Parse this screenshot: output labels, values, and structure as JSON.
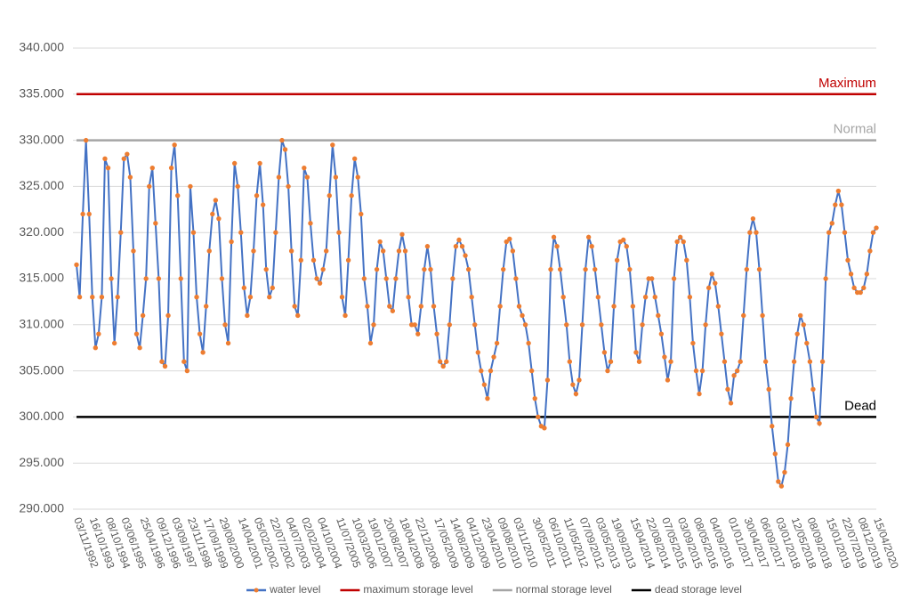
{
  "chart_data": {
    "type": "line",
    "categories": [
      "03/11/1992",
      null,
      null,
      null,
      null,
      "16/10/1993",
      null,
      null,
      null,
      null,
      "08/10/1994",
      null,
      null,
      null,
      null,
      "03/06/1995",
      null,
      null,
      null,
      null,
      null,
      "25/04/1996",
      null,
      null,
      null,
      null,
      "09/12/1996",
      null,
      null,
      null,
      null,
      "03/09/1997",
      null,
      null,
      null,
      null,
      "23/11/1998",
      null,
      null,
      null,
      null,
      "17/09/1999",
      null,
      null,
      null,
      null,
      "29/08/2000",
      null,
      null,
      null,
      null,
      null,
      "14/04/2001",
      null,
      null,
      null,
      null,
      "05/02/2002",
      null,
      null,
      null,
      null,
      "22/07/2002",
      null,
      null,
      null,
      null,
      "04/07/2003",
      null,
      null,
      null,
      null,
      "02/02/2004",
      null,
      null,
      null,
      null,
      "04/10/2004",
      null,
      null,
      null,
      null,
      null,
      "11/07/2005",
      null,
      null,
      null,
      null,
      "10/03/2006",
      null,
      null,
      null,
      null,
      "19/01/2007",
      null,
      null,
      null,
      null,
      "20/08/2007",
      null,
      null,
      null,
      null,
      "18/04/2008",
      null,
      null,
      null,
      null,
      "22/12/2008",
      null,
      null,
      null,
      null,
      null,
      "17/05/2009",
      null,
      null,
      null,
      null,
      "14/08/2009",
      null,
      null,
      null,
      null,
      "04/12/2009",
      null,
      null,
      null,
      null,
      "23/04/2010",
      null,
      null,
      null,
      null,
      "09/08/2010",
      null,
      null,
      null,
      null,
      "03/11/2010",
      null,
      null,
      null,
      null,
      null,
      "30/05/2011",
      null,
      null,
      null,
      null,
      "06/10/2011",
      null,
      null,
      null,
      null,
      "11/05/2012",
      null,
      null,
      null,
      null,
      "07/09/2012",
      null,
      null,
      null,
      null,
      "03/05/2013",
      null,
      null,
      null,
      null,
      "19/09/2013",
      null,
      null,
      null,
      null,
      null,
      "15/04/2014",
      null,
      null,
      null,
      null,
      "22/08/2014",
      null,
      null,
      null,
      null,
      "07/05/2015",
      null,
      null,
      null,
      null,
      "03/09/2015",
      null,
      null,
      null,
      null,
      "08/05/2016",
      null,
      null,
      null,
      null,
      "04/09/2016",
      null,
      null,
      null,
      null,
      null,
      "01/01/2017",
      null,
      null,
      null,
      null,
      "30/04/2017",
      null,
      null,
      null,
      null,
      "06/09/2017",
      null,
      null,
      null,
      null,
      "03/01/2018",
      null,
      null,
      null,
      null,
      "12/05/2018",
      null,
      null,
      null,
      null,
      "08/09/2018",
      null,
      null,
      null,
      null,
      null,
      "15/01/2019",
      null,
      null,
      null,
      null,
      "22/07/2019",
      null,
      null,
      null,
      null,
      "08/12/2019",
      null,
      null,
      null,
      null,
      "15/04/2020"
    ],
    "series": [
      {
        "name": "water level",
        "color": "#4472c4",
        "marker_color": "#ed7d31",
        "values": [
          316.5,
          313,
          322,
          330,
          322,
          313,
          307.5,
          309,
          313,
          328,
          327,
          315,
          308,
          313,
          320,
          328,
          328.5,
          326,
          318,
          309,
          307.5,
          311,
          315,
          325,
          327,
          321,
          315,
          306,
          305.5,
          311,
          327,
          329.5,
          324,
          315,
          306,
          305,
          325,
          320,
          313,
          309,
          307,
          312,
          318,
          322,
          323.5,
          321.5,
          315,
          310,
          308,
          319,
          327.5,
          325,
          320,
          314,
          311,
          313,
          318,
          324,
          327.5,
          323,
          316,
          313,
          314,
          320,
          326,
          330,
          329,
          325,
          318,
          312,
          311,
          317,
          327,
          326,
          321,
          317,
          315,
          314.5,
          316,
          318,
          324,
          329.5,
          326,
          320,
          313,
          311,
          317,
          324,
          328,
          326,
          322,
          315,
          312,
          308,
          310,
          316,
          319,
          318,
          315,
          312,
          311.5,
          315,
          318,
          319.8,
          318,
          313,
          310,
          310,
          309,
          312,
          316,
          318.5,
          316,
          312,
          309,
          306,
          305.5,
          306,
          310,
          315,
          318.5,
          319.2,
          318.5,
          317.5,
          316,
          313,
          310,
          307,
          305,
          303.5,
          302,
          305,
          306.5,
          308,
          312,
          316,
          319,
          319.3,
          318,
          315,
          312,
          311,
          310,
          308,
          305,
          302,
          300,
          299,
          298.8,
          304,
          316,
          319.5,
          318.5,
          316,
          313,
          310,
          306,
          303.5,
          302.5,
          304,
          310,
          316,
          319.5,
          318.5,
          316,
          313,
          310,
          307,
          305,
          306,
          312,
          317,
          319,
          319.2,
          318.5,
          316,
          312,
          307,
          306,
          310,
          313,
          315,
          315,
          313,
          311,
          309,
          306.5,
          304,
          306,
          315,
          319,
          319.5,
          319,
          317,
          313,
          308,
          305,
          302.5,
          305,
          310,
          314,
          315.5,
          314.5,
          312,
          309,
          306,
          303,
          301.5,
          304.5,
          305,
          306,
          311,
          316,
          320,
          321.5,
          320,
          316,
          311,
          306,
          303,
          299,
          296,
          293,
          292.5,
          294,
          297,
          302,
          306,
          309,
          311,
          310,
          308,
          306,
          303,
          300,
          299.3,
          306,
          315,
          320,
          321,
          323,
          324.5,
          323,
          320,
          317,
          315.5,
          314,
          313.5,
          313.5,
          314,
          315.5,
          318,
          320,
          320.5
        ]
      }
    ],
    "reference_lines": [
      {
        "name": "maximum storage level",
        "label": "Maximum",
        "value": 335,
        "color": "#c00000"
      },
      {
        "name": "normal storage level",
        "label": "Normal",
        "value": 330,
        "color": "#a5a5a5"
      },
      {
        "name": "dead storage level",
        "label": "Dead",
        "value": 300,
        "color": "#000000"
      }
    ],
    "ylim": [
      290,
      340
    ],
    "yticks": [
      {
        "value": 290,
        "label": "290.000"
      },
      {
        "value": 295,
        "label": "295.000"
      },
      {
        "value": 300,
        "label": "300.000"
      },
      {
        "value": 305,
        "label": "305.000"
      },
      {
        "value": 310,
        "label": "310.000"
      },
      {
        "value": 315,
        "label": "315.000"
      },
      {
        "value": 320,
        "label": "320.000"
      },
      {
        "value": 325,
        "label": "325.000"
      },
      {
        "value": 330,
        "label": "330.000"
      },
      {
        "value": 335,
        "label": "335.000"
      },
      {
        "value": 340,
        "label": "340.000"
      }
    ],
    "grid": true,
    "legend": "bottom"
  }
}
